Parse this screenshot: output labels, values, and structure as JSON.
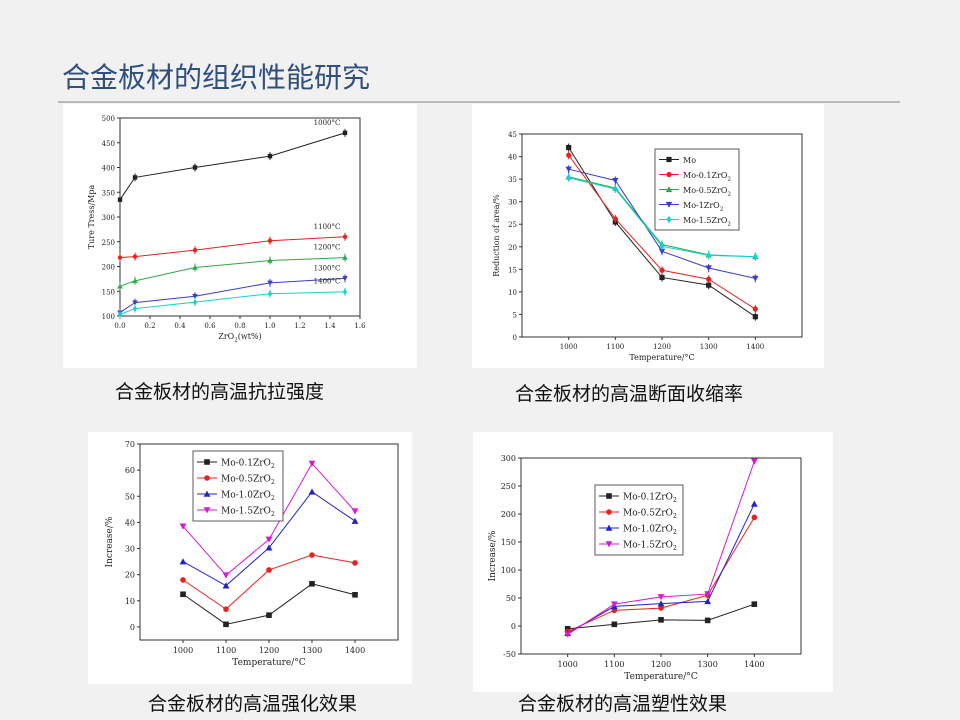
{
  "slide": {
    "title": "合金板材的组织性能研究",
    "captions": [
      "合金板材的高温抗拉强度",
      "合金板材的高温断面收缩率",
      "合金板材的高温强化效果",
      "合金板材的高温塑性效果"
    ]
  },
  "colors": {
    "title": "#2f4f7f",
    "rule": "#b8b8b8"
  },
  "chart_data": [
    {
      "type": "line",
      "xlabel": "ZrO2(wt%)",
      "ylabel": "Ture Tress/Mpa",
      "xlim": [
        0,
        1.6
      ],
      "ylim": [
        100,
        500
      ],
      "xticks": [
        "0.0",
        "0.2",
        "0.4",
        "0.6",
        "0.8",
        "1.0",
        "1.2",
        "1.4",
        "1.6"
      ],
      "yticks": [
        "100",
        "150",
        "200",
        "250",
        "300",
        "350",
        "400",
        "450",
        "500"
      ],
      "legend": "none",
      "series": [
        {
          "name": "1000°C",
          "color": "#222222",
          "marker": "square",
          "x": [
            0,
            0.1,
            0.5,
            1.0,
            1.5
          ],
          "y": [
            335,
            380,
            400,
            423,
            470
          ]
        },
        {
          "name": "1100°C",
          "color": "#e8221e",
          "marker": "circle",
          "x": [
            0,
            0.1,
            0.5,
            1.0,
            1.5
          ],
          "y": [
            218,
            220,
            233,
            252,
            260
          ]
        },
        {
          "name": "1200°C",
          "color": "#2ea84a",
          "marker": "triangle",
          "x": [
            0,
            0.1,
            0.5,
            1.0,
            1.5
          ],
          "y": [
            160,
            171,
            198,
            212,
            218
          ]
        },
        {
          "name": "1300°C",
          "color": "#3c3ccc",
          "marker": "triangle-down",
          "x": [
            0,
            0.1,
            0.5,
            1.0,
            1.5
          ],
          "y": [
            107,
            127,
            140,
            167,
            176
          ]
        },
        {
          "name": "1400°C",
          "color": "#19d0d0",
          "marker": "diamond",
          "x": [
            0,
            0.1,
            0.5,
            1.0,
            1.5
          ],
          "y": [
            103,
            115,
            128,
            145,
            149
          ]
        }
      ]
    },
    {
      "type": "line",
      "xlabel": "Temperature/°C",
      "ylabel": "Reduction of area/%",
      "categories": [
        "1000",
        "1100",
        "1200",
        "1300",
        "1400"
      ],
      "ylim": [
        0,
        45
      ],
      "yticks": [
        "0",
        "5",
        "10",
        "15",
        "20",
        "25",
        "30",
        "35",
        "40",
        "45"
      ],
      "legend": "top-right",
      "series": [
        {
          "name": "Mo",
          "color": "#222222",
          "marker": "square",
          "values": [
            42,
            25.5,
            13.2,
            11.5,
            4.5
          ]
        },
        {
          "name": "Mo-0.1ZrO2",
          "color": "#e8221e",
          "marker": "circle",
          "values": [
            40.3,
            26.2,
            14.8,
            12.8,
            6.2
          ]
        },
        {
          "name": "Mo-0.5ZrO2",
          "color": "#2ea84a",
          "marker": "triangle",
          "values": [
            35.5,
            33,
            20.5,
            18.2,
            17.8
          ]
        },
        {
          "name": "Mo-1ZrO2",
          "color": "#3c3ccc",
          "marker": "triangle-down",
          "values": [
            37.2,
            34.7,
            19,
            15.3,
            13
          ]
        },
        {
          "name": "Mo-1.5ZrO2",
          "color": "#19d0d0",
          "marker": "diamond",
          "values": [
            35.3,
            32.8,
            20.1,
            18.1,
            17.8
          ]
        }
      ]
    },
    {
      "type": "line",
      "xlabel": "Temperature/°C",
      "ylabel": "Increase/%",
      "categories": [
        "1000",
        "1100",
        "1200",
        "1300",
        "1400"
      ],
      "ylim": [
        -5,
        70
      ],
      "yticks": [
        "0",
        "10",
        "20",
        "30",
        "40",
        "50",
        "60",
        "70"
      ],
      "legend": "top-left",
      "series": [
        {
          "name": "Mo-0.1ZrO2",
          "color": "#222222",
          "marker": "square",
          "values": [
            12.5,
            1,
            4.5,
            16.5,
            12.3
          ]
        },
        {
          "name": "Mo-0.5ZrO2",
          "color": "#e8221e",
          "marker": "circle",
          "values": [
            18,
            6.8,
            21.8,
            27.5,
            24.5
          ]
        },
        {
          "name": "Mo-1.0ZrO2",
          "color": "#2323c8",
          "marker": "triangle",
          "values": [
            25,
            15.8,
            30.3,
            51.7,
            40.5
          ]
        },
        {
          "name": "Mo-1.5ZrO2",
          "color": "#d61ad6",
          "marker": "triangle-down",
          "values": [
            38.5,
            19.8,
            33.5,
            62.5,
            44.3
          ]
        }
      ]
    },
    {
      "type": "line",
      "xlabel": "Temperature/°C",
      "ylabel": "Increase/%",
      "categories": [
        "1000",
        "1100",
        "1200",
        "1300",
        "1400"
      ],
      "ylim": [
        -50,
        300
      ],
      "yticks": [
        "-50",
        "0",
        "50",
        "100",
        "150",
        "200",
        "250",
        "300"
      ],
      "legend": "top-left",
      "series": [
        {
          "name": "Mo-0.1ZrO2",
          "color": "#222222",
          "marker": "square",
          "values": [
            -5,
            3,
            11,
            10,
            39
          ]
        },
        {
          "name": "Mo-0.5ZrO2",
          "color": "#e8221e",
          "marker": "circle",
          "values": [
            -10,
            28,
            32,
            55,
            194
          ]
        },
        {
          "name": "Mo-1.0ZrO2",
          "color": "#2323c8",
          "marker": "triangle",
          "values": [
            -13,
            35,
            40,
            44,
            218
          ]
        },
        {
          "name": "Mo-1.5ZrO2",
          "color": "#d61ad6",
          "marker": "triangle-down",
          "values": [
            -15,
            39,
            52,
            57,
            294
          ]
        }
      ]
    }
  ]
}
